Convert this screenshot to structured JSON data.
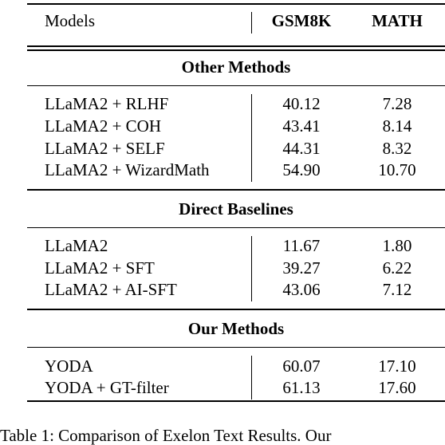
{
  "table": {
    "header": {
      "models": "Models",
      "gsm8k": "GSM8K",
      "math": "MATH"
    },
    "sections": [
      {
        "title": "Other Methods",
        "rows": [
          {
            "model": "LLaMA2 + RLHF",
            "gsm8k": "40.12",
            "math": "7.28"
          },
          {
            "model": "LLaMA2 + COH",
            "gsm8k": "43.41",
            "math": "8.14"
          },
          {
            "model": "LLaMA2 + SELF",
            "gsm8k": "44.31",
            "math": "8.32"
          },
          {
            "model": "LLaMA2 + WizardMath",
            "gsm8k": "54.90",
            "math": "10.70"
          }
        ]
      },
      {
        "title": "Direct Baselines",
        "rows": [
          {
            "model": "LLaMA2",
            "gsm8k": "11.67",
            "math": "1.80"
          },
          {
            "model": "LLaMA2 + SFT",
            "gsm8k": "39.27",
            "math": "6.22"
          },
          {
            "model": "LLaMA2 + AI-SFT",
            "gsm8k": "43.06",
            "math": "7.12"
          }
        ]
      },
      {
        "title": "Our Methods",
        "rows": [
          {
            "model": "YODA",
            "gsm8k": "60.07",
            "math": "17.10"
          },
          {
            "model": "YODA + GT-filter",
            "gsm8k": "61.13",
            "math": "17.60"
          }
        ]
      }
    ]
  },
  "caption": "Table 1: Comparison of Exelon Text Results. Our"
}
